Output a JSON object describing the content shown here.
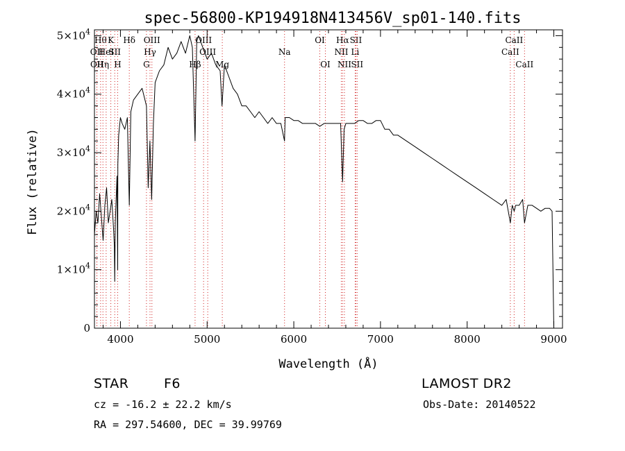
{
  "chart_data": {
    "type": "line",
    "title": "spec-56800-KP194918N413456V_sp01-140.fits",
    "xlabel": "Wavelength (Å)",
    "ylabel": "Flux (relative)",
    "xlim": [
      3700,
      9100
    ],
    "ylim": [
      0,
      51000
    ],
    "xticks": [
      {
        "value": 4000,
        "label": "4000"
      },
      {
        "value": 5000,
        "label": "5000"
      },
      {
        "value": 6000,
        "label": "6000"
      },
      {
        "value": 7000,
        "label": "7000"
      },
      {
        "value": 8000,
        "label": "8000"
      },
      {
        "value": 9000,
        "label": "9000"
      }
    ],
    "yticks": [
      {
        "value": 0,
        "mant": "0",
        "exp": ""
      },
      {
        "value": 10000,
        "mant": "1×10",
        "exp": "4"
      },
      {
        "value": 20000,
        "mant": "2×10",
        "exp": "4"
      },
      {
        "value": 30000,
        "mant": "3×10",
        "exp": "4"
      },
      {
        "value": 40000,
        "mant": "4×10",
        "exp": "4"
      },
      {
        "value": 50000,
        "mant": "5×10",
        "exp": "4"
      }
    ],
    "series": [
      {
        "color": "#000000",
        "x": [
          3700,
          3720,
          3740,
          3760,
          3780,
          3800,
          3820,
          3840,
          3860,
          3880,
          3900,
          3920,
          3930,
          3934,
          3940,
          3960,
          3968,
          3970,
          3980,
          4000,
          4020,
          4050,
          4080,
          4102,
          4120,
          4150,
          4200,
          4250,
          4300,
          4320,
          4340,
          4360,
          4380,
          4400,
          4450,
          4500,
          4550,
          4600,
          4650,
          4700,
          4750,
          4800,
          4830,
          4861,
          4880,
          4900,
          4950,
          5000,
          5050,
          5100,
          5150,
          5172,
          5200,
          5250,
          5300,
          5350,
          5400,
          5450,
          5500,
          5550,
          5600,
          5650,
          5700,
          5750,
          5800,
          5850,
          5893,
          5900,
          5950,
          6000,
          6050,
          6100,
          6150,
          6200,
          6250,
          6300,
          6350,
          6400,
          6450,
          6500,
          6540,
          6563,
          6580,
          6600,
          6650,
          6700,
          6750,
          6800,
          6850,
          6900,
          6950,
          7000,
          7050,
          7100,
          7150,
          7200,
          7300,
          7400,
          7500,
          7600,
          7700,
          7800,
          7900,
          8000,
          8100,
          8200,
          8300,
          8400,
          8450,
          8498,
          8520,
          8542,
          8560,
          8600,
          8640,
          8662,
          8700,
          8750,
          8800,
          8850,
          8900,
          8950,
          8980,
          9000
        ],
        "y": [
          16000,
          20000,
          18000,
          23000,
          19000,
          15000,
          21000,
          24000,
          18000,
          20000,
          22000,
          17000,
          14000,
          8000,
          18000,
          26000,
          10000,
          28000,
          33000,
          36000,
          35000,
          34000,
          36000,
          21000,
          37000,
          39000,
          40000,
          41000,
          38000,
          24000,
          32000,
          22000,
          35000,
          42000,
          44000,
          45000,
          48000,
          46000,
          47000,
          49000,
          47000,
          50000,
          48000,
          32000,
          49000,
          50000,
          48000,
          46000,
          47000,
          45000,
          44000,
          38000,
          45000,
          43000,
          41000,
          40000,
          38000,
          38000,
          37000,
          36000,
          37000,
          36000,
          35000,
          36000,
          35000,
          35000,
          32000,
          36000,
          36000,
          35500,
          35500,
          35000,
          35000,
          35000,
          35000,
          34500,
          35000,
          35000,
          35000,
          35000,
          35000,
          25000,
          34000,
          35000,
          35000,
          35000,
          35500,
          35500,
          35000,
          35000,
          35500,
          35500,
          34000,
          34000,
          33000,
          33000,
          32000,
          31000,
          30000,
          29000,
          28000,
          27000,
          26000,
          25000,
          24000,
          23000,
          22000,
          21000,
          22000,
          18000,
          21000,
          20000,
          21000,
          21000,
          22000,
          18000,
          21000,
          21000,
          20500,
          20000,
          20500,
          20500,
          20000,
          0
        ]
      }
    ],
    "lines": [
      {
        "x": 3727,
        "label": "OII",
        "row": 2
      },
      {
        "x": 3729,
        "label": "OII",
        "row": 3
      },
      {
        "x": 3771,
        "label": "Hθ",
        "row": 1
      },
      {
        "x": 3798,
        "label": "Hη",
        "row": 3
      },
      {
        "x": 3835,
        "label": "HeI",
        "row": 2
      },
      {
        "x": 3889,
        "label": "K",
        "row": 1
      },
      {
        "x": 3934,
        "label": "SII",
        "row": 2
      },
      {
        "x": 3968,
        "label": "H",
        "row": 3
      },
      {
        "x": 4102,
        "label": "Hδ",
        "row": 1
      },
      {
        "x": 4300,
        "label": "G",
        "row": 3
      },
      {
        "x": 4341,
        "label": "Hγ",
        "row": 2
      },
      {
        "x": 4363,
        "label": "OIII",
        "row": 1
      },
      {
        "x": 4861,
        "label": "Hβ",
        "row": 3
      },
      {
        "x": 4959,
        "label": "OIII",
        "row": 1
      },
      {
        "x": 5007,
        "label": "OIII",
        "row": 2
      },
      {
        "x": 5175,
        "label": "Mg",
        "row": 3
      },
      {
        "x": 5893,
        "label": "Na",
        "row": 2
      },
      {
        "x": 6300,
        "label": "OI",
        "row": 1
      },
      {
        "x": 6364,
        "label": "OI",
        "row": 3
      },
      {
        "x": 6548,
        "label": "NII",
        "row": 2
      },
      {
        "x": 6563,
        "label": "Hα",
        "row": 1
      },
      {
        "x": 6584,
        "label": "NII",
        "row": 3
      },
      {
        "x": 6708,
        "label": "Li",
        "row": 2
      },
      {
        "x": 6716,
        "label": "SII",
        "row": 1
      },
      {
        "x": 6731,
        "label": "SII",
        "row": 3
      },
      {
        "x": 8498,
        "label": "CaII",
        "row": 2
      },
      {
        "x": 8542,
        "label": "CaII",
        "row": 1
      },
      {
        "x": 8662,
        "label": "CaII",
        "row": 3
      }
    ]
  },
  "info": {
    "class_label": "STAR",
    "subclass": "F6",
    "survey": "LAMOST DR2",
    "cz": "cz = -16.2 ± 22.2 km/s",
    "obs_date": "Obs-Date: 20140522",
    "radec": "RA = 297.54600, DEC =  39.99769"
  },
  "colors": {
    "axes": "#000000",
    "spectrum": "#000000",
    "line_markers": "#d02020"
  }
}
